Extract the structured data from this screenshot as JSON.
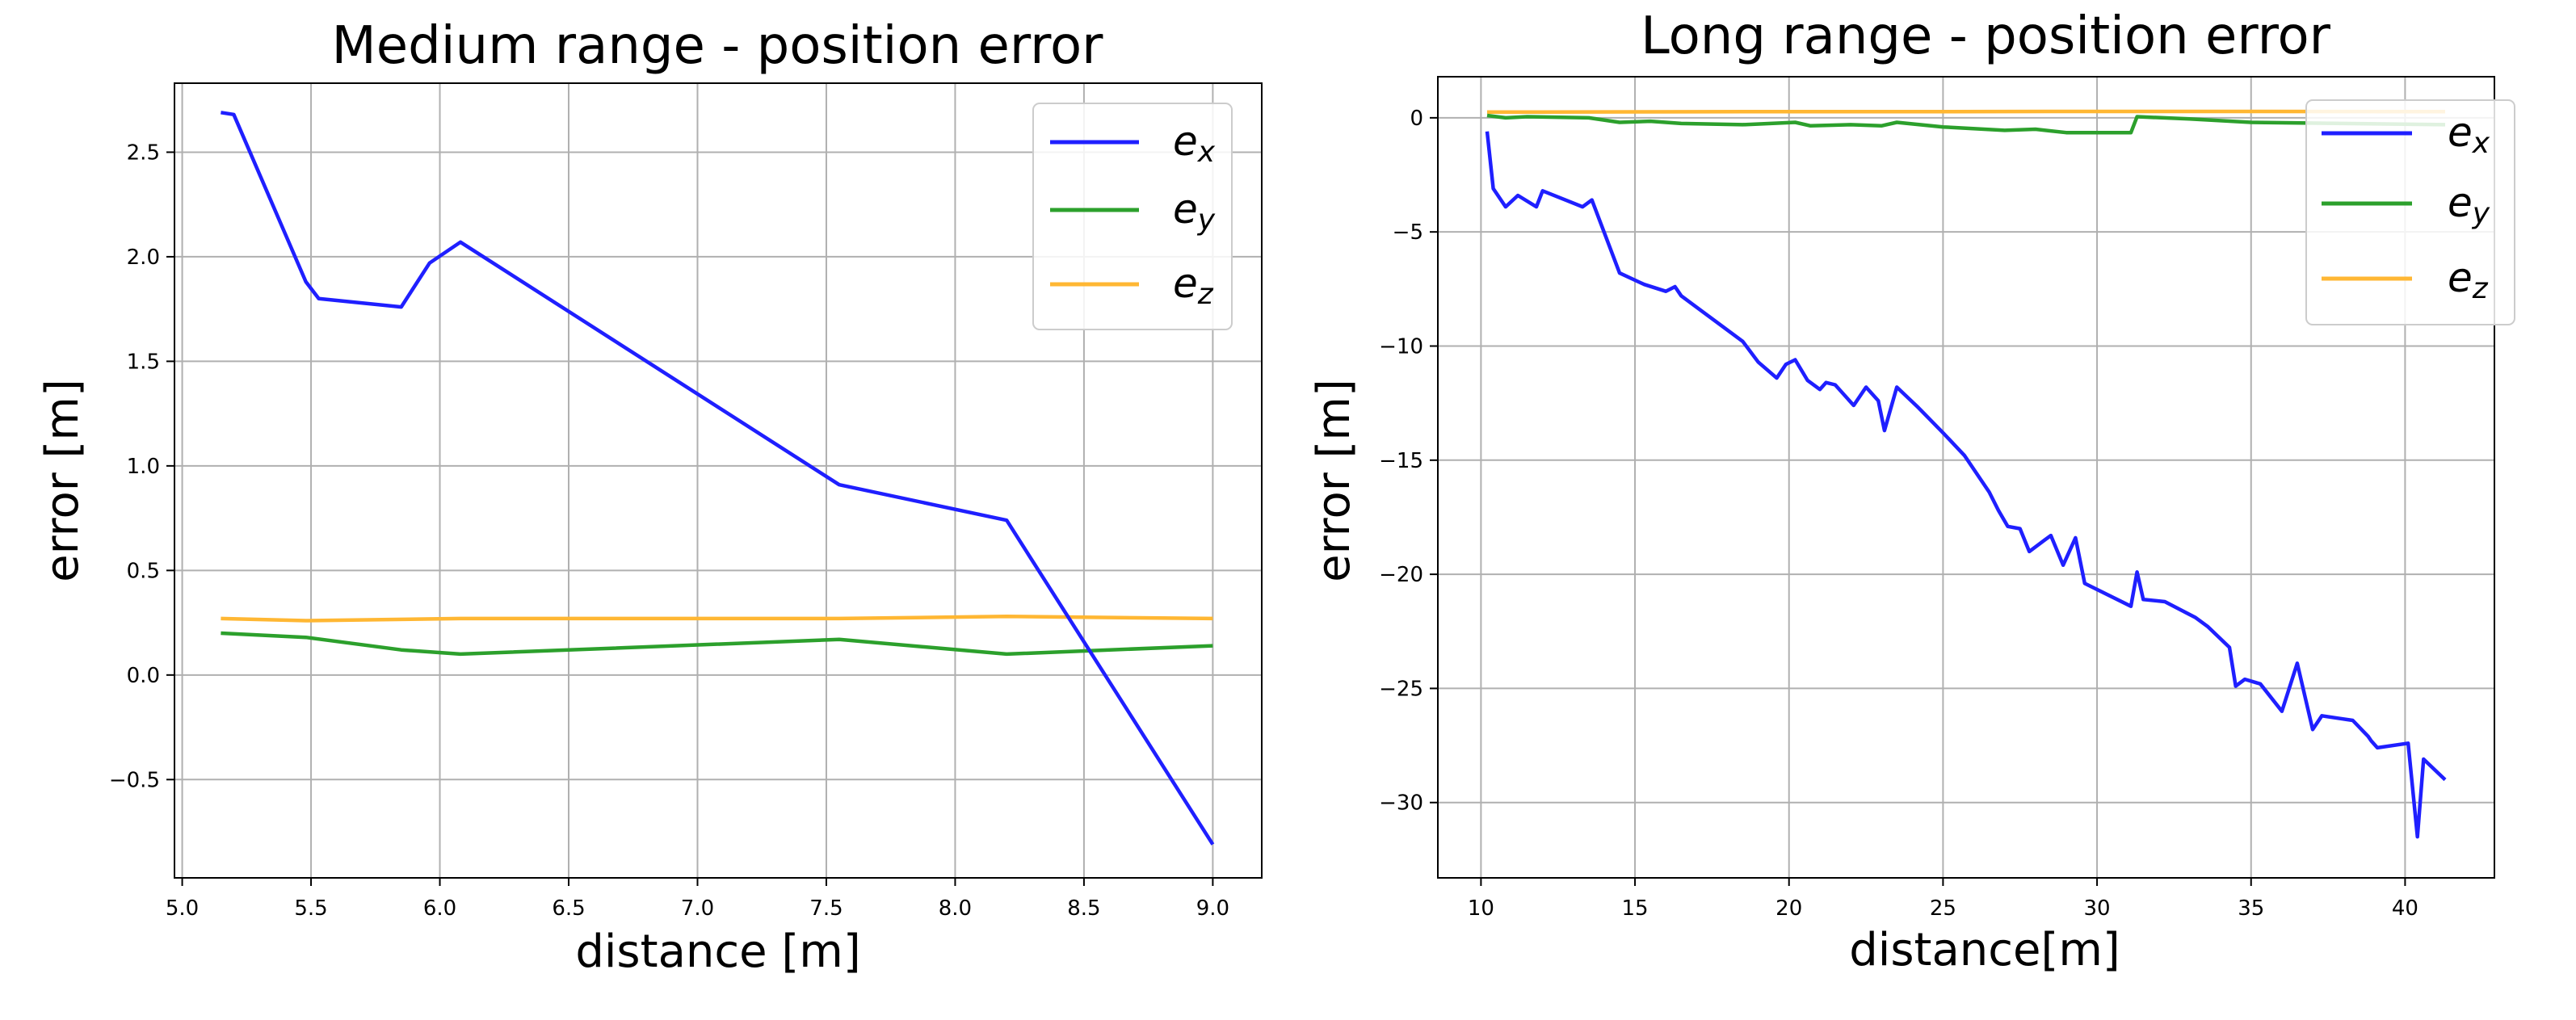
{
  "colors": {
    "ex": "#1f1fff",
    "ey": "#2ca02c",
    "ez": "#ffb733",
    "grid": "#b0b0b0"
  },
  "chart_data": [
    {
      "type": "line",
      "title": "Medium range - position error",
      "xlabel": "distance [m]",
      "ylabel": "error [m]",
      "xlim": [
        4.97,
        9.19
      ],
      "ylim": [
        -0.97,
        2.83
      ],
      "grid": true,
      "legend_position": "top-right",
      "xticks": [
        5.0,
        5.5,
        6.0,
        6.5,
        7.0,
        7.5,
        8.0,
        8.5,
        9.0
      ],
      "xtick_labels": [
        "5.0",
        "5.5",
        "6.0",
        "6.5",
        "7.0",
        "7.5",
        "8.0",
        "8.5",
        "9.0"
      ],
      "yticks": [
        -0.5,
        0.0,
        0.5,
        1.0,
        1.5,
        2.0,
        2.5
      ],
      "ytick_labels": [
        "−0.5",
        "0.0",
        "0.5",
        "1.0",
        "1.5",
        "2.0",
        "2.5"
      ],
      "series": [
        {
          "name": "e",
          "sub": "x",
          "color_key": "ex",
          "x": [
            5.15,
            5.2,
            5.48,
            5.53,
            5.85,
            5.96,
            6.08,
            7.55,
            8.2,
            9.0
          ],
          "y": [
            2.69,
            2.68,
            1.88,
            1.8,
            1.76,
            1.97,
            2.07,
            0.91,
            0.74,
            -0.81
          ]
        },
        {
          "name": "e",
          "sub": "y",
          "color_key": "ey",
          "x": [
            5.15,
            5.48,
            5.85,
            6.08,
            7.55,
            8.2,
            9.0
          ],
          "y": [
            0.2,
            0.18,
            0.12,
            0.1,
            0.17,
            0.1,
            0.14
          ]
        },
        {
          "name": "e",
          "sub": "z",
          "color_key": "ez",
          "x": [
            5.15,
            5.48,
            6.08,
            7.55,
            8.2,
            9.0
          ],
          "y": [
            0.27,
            0.26,
            0.27,
            0.27,
            0.28,
            0.27
          ]
        }
      ]
    },
    {
      "type": "line",
      "title": "Long range - position error",
      "xlabel": "distance[m]",
      "ylabel": "error [m]",
      "xlim": [
        8.6,
        42.9
      ],
      "ylim": [
        -33.3,
        1.8
      ],
      "grid": true,
      "legend_position": "top-right",
      "xticks": [
        10,
        15,
        20,
        25,
        30,
        35,
        40
      ],
      "xtick_labels": [
        "10",
        "15",
        "20",
        "25",
        "30",
        "35",
        "40"
      ],
      "yticks": [
        -30,
        -25,
        -20,
        -15,
        -10,
        -5,
        0
      ],
      "ytick_labels": [
        "−30",
        "−25",
        "−20",
        "−15",
        "−10",
        "−5",
        "0"
      ],
      "series": [
        {
          "name": "e",
          "sub": "x",
          "color_key": "ex",
          "x": [
            10.2,
            10.4,
            10.8,
            11.2,
            11.8,
            12.0,
            13.3,
            13.6,
            14.5,
            15.3,
            16.0,
            16.3,
            16.5,
            17.5,
            18.5,
            19.0,
            19.6,
            19.9,
            20.2,
            20.6,
            21.0,
            21.2,
            21.5,
            22.1,
            22.5,
            22.9,
            23.1,
            23.5,
            24.2,
            25.0,
            25.7,
            26.5,
            26.8,
            27.1,
            27.5,
            27.8,
            28.3,
            28.5,
            28.9,
            29.3,
            29.6,
            31.1,
            31.3,
            31.5,
            32.2,
            33.2,
            33.6,
            34.3,
            34.5,
            34.8,
            35.3,
            36.0,
            36.5,
            37.0,
            37.3,
            37.8,
            38.3,
            38.8,
            38.9,
            39.1,
            40.1,
            40.4,
            40.6,
            41.3
          ],
          "y": [
            -0.6,
            -3.1,
            -3.9,
            -3.4,
            -3.9,
            -3.2,
            -3.9,
            -3.6,
            -6.8,
            -7.3,
            -7.6,
            -7.4,
            -7.8,
            -8.8,
            -9.8,
            -10.7,
            -11.4,
            -10.8,
            -10.6,
            -11.5,
            -11.9,
            -11.6,
            -11.7,
            -12.6,
            -11.8,
            -12.4,
            -13.7,
            -11.8,
            -12.7,
            -13.8,
            -14.8,
            -16.4,
            -17.2,
            -17.9,
            -18.0,
            -19.0,
            -18.5,
            -18.3,
            -19.6,
            -18.4,
            -20.4,
            -21.4,
            -19.9,
            -21.1,
            -21.2,
            -21.9,
            -22.3,
            -23.2,
            -24.9,
            -24.6,
            -24.8,
            -26.0,
            -23.9,
            -26.8,
            -26.2,
            -26.3,
            -26.4,
            -27.1,
            -27.3,
            -27.6,
            -27.4,
            -31.5,
            -28.1,
            -29.0
          ]
        },
        {
          "name": "e",
          "sub": "y",
          "color_key": "ey",
          "x": [
            10.2,
            10.8,
            11.5,
            13.5,
            14.5,
            15.5,
            16.5,
            18.5,
            20.2,
            20.7,
            22.0,
            23.0,
            23.5,
            25.0,
            27.0,
            28.0,
            29.0,
            31.1,
            31.3,
            33.0,
            35.0,
            41.3
          ],
          "y": [
            0.1,
            0.0,
            0.05,
            0.0,
            -0.2,
            -0.15,
            -0.25,
            -0.3,
            -0.2,
            -0.35,
            -0.3,
            -0.35,
            -0.2,
            -0.4,
            -0.55,
            -0.5,
            -0.65,
            -0.65,
            0.05,
            -0.05,
            -0.2,
            -0.3
          ]
        },
        {
          "name": "e",
          "sub": "z",
          "color_key": "ez",
          "x": [
            10.2,
            15.0,
            20.0,
            25.0,
            30.0,
            35.0,
            41.3
          ],
          "y": [
            0.25,
            0.26,
            0.27,
            0.27,
            0.28,
            0.28,
            0.27
          ]
        }
      ]
    }
  ]
}
